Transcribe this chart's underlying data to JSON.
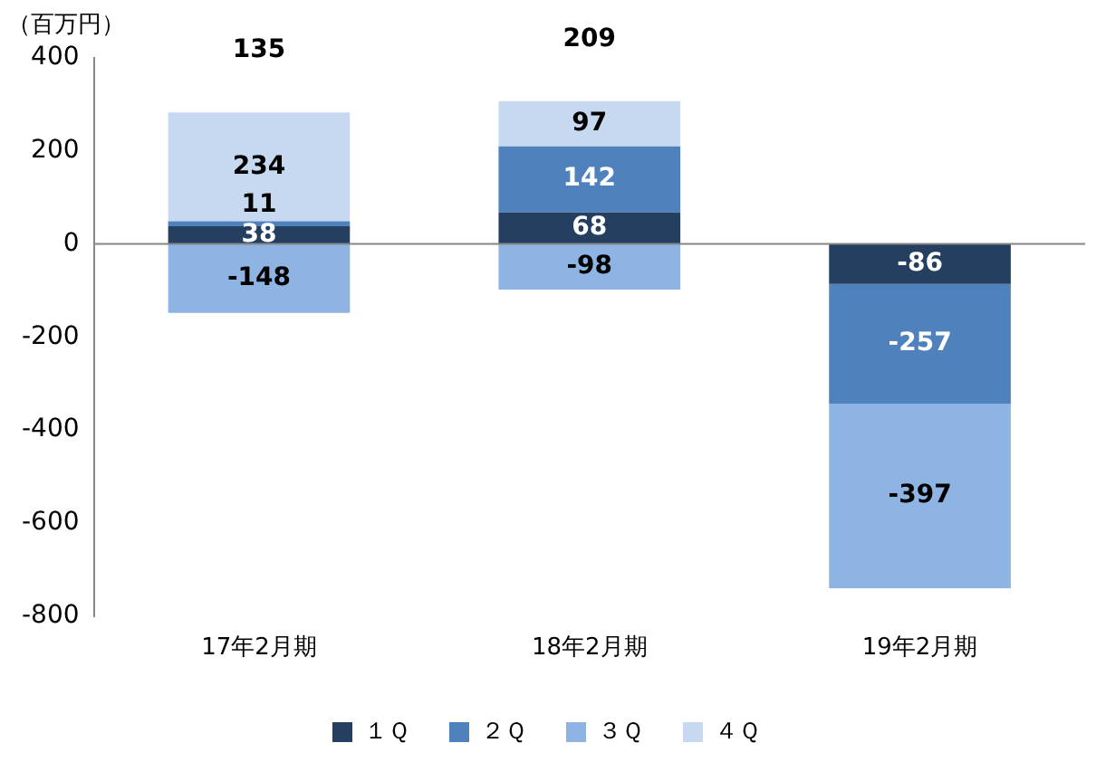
{
  "chart_data": {
    "type": "bar",
    "stacked": true,
    "ylabel": "（百万円）",
    "categories": [
      "17年2月期",
      "18年2月期",
      "19年2月期"
    ],
    "series": [
      {
        "name": "１Ｑ",
        "color": "#243f60",
        "values": [
          38,
          68,
          -86
        ]
      },
      {
        "name": "２Ｑ",
        "color": "#4f81bd",
        "values": [
          11,
          142,
          -257
        ]
      },
      {
        "name": "３Ｑ",
        "color": "#8eb4e3",
        "values": [
          -148,
          -98,
          -397
        ]
      },
      {
        "name": "４Ｑ",
        "color": "#c6d9f1",
        "values": [
          234,
          97,
          null
        ]
      }
    ],
    "ylim": [
      -800,
      400
    ],
    "yticks": [
      -800,
      -600,
      -400,
      -200,
      0,
      200,
      400
    ],
    "grid": false,
    "legend": "bottom",
    "data_labels": true,
    "totals": [
      "135",
      "209",
      null
    ],
    "ref_lines": [
      {
        "axis": "y",
        "value": 0,
        "color": "#868686"
      }
    ]
  }
}
